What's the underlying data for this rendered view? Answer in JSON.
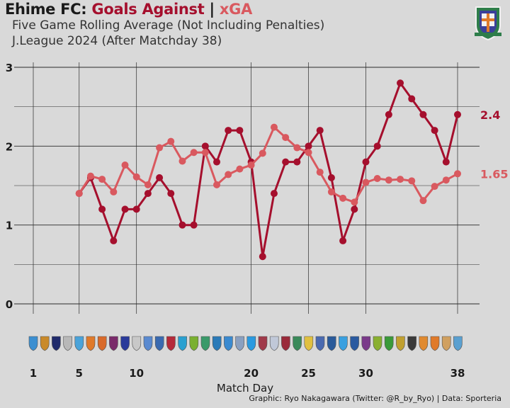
{
  "header": {
    "team": "Ehime FC:",
    "ga_label": "Goals Against",
    "sep": "|",
    "xga_label": "xGA",
    "subtitle": "Five Game Rolling Average (Not Including Penalties)",
    "league": "J.League 2024 (After Matchday 38)"
  },
  "footer": {
    "credit": "Graphic: Ryo Nakagawara (Twitter: @R_by_Ryo) | Data: Sporteria"
  },
  "colors": {
    "goals_against": "#a50f2d",
    "xga": "#d9595f",
    "background": "#d9d9d9",
    "grid": "#2b2b2b"
  },
  "chart_data": {
    "type": "line",
    "xlabel": "Match Day",
    "ylabel": "",
    "xlim": [
      1,
      38
    ],
    "ylim": [
      0,
      3
    ],
    "x_ticks": [
      1,
      5,
      10,
      20,
      25,
      30,
      38
    ],
    "y_ticks": [
      0,
      1,
      2,
      3
    ],
    "x": [
      5,
      6,
      7,
      8,
      9,
      10,
      11,
      12,
      13,
      14,
      15,
      16,
      17,
      18,
      19,
      20,
      21,
      22,
      23,
      24,
      25,
      26,
      27,
      28,
      29,
      30,
      31,
      32,
      33,
      34,
      35,
      36,
      37,
      38
    ],
    "series": [
      {
        "name": "Goals Against",
        "color": "#a50f2d",
        "values": [
          1.4,
          1.6,
          1.2,
          0.8,
          1.2,
          1.2,
          1.4,
          1.6,
          1.4,
          1.0,
          1.0,
          2.0,
          1.8,
          2.2,
          2.2,
          1.8,
          0.6,
          1.4,
          1.8,
          1.8,
          2.0,
          2.2,
          1.6,
          0.8,
          1.2,
          1.8,
          2.0,
          2.4,
          2.8,
          2.6,
          2.4,
          2.2,
          1.8,
          2.4
        ],
        "end_label": "2.4"
      },
      {
        "name": "xGA",
        "color": "#d9595f",
        "values": [
          1.4,
          1.62,
          1.58,
          1.42,
          1.76,
          1.61,
          1.51,
          1.98,
          2.06,
          1.81,
          1.92,
          1.92,
          1.51,
          1.64,
          1.71,
          1.76,
          1.91,
          2.24,
          2.11,
          1.98,
          1.92,
          1.67,
          1.42,
          1.34,
          1.29,
          1.54,
          1.59,
          1.57,
          1.58,
          1.56,
          1.31,
          1.49,
          1.57,
          1.65
        ],
        "end_label": "1.65"
      }
    ],
    "opponent_logos": 38,
    "grid": true,
    "legend": "none"
  }
}
